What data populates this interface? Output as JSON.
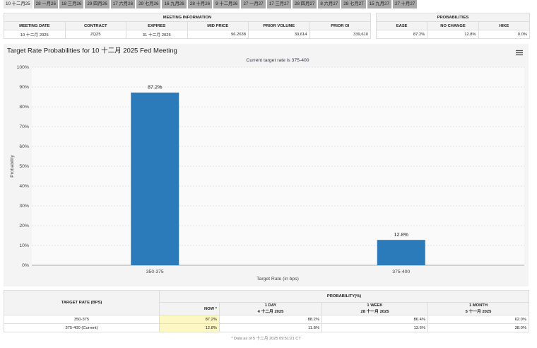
{
  "tabs": [
    "10 十二月25",
    "28 一月26",
    "18 三月26",
    "29 四月26",
    "17 六月26",
    "29 七月26",
    "16 九月26",
    "28 十月26",
    "9 十二月26",
    "27 一月27",
    "17 三月27",
    "28 四月27",
    "8 六月27",
    "28 七月27",
    "15 九月27",
    "27 十月27"
  ],
  "meeting_table": {
    "title": "MEETING INFORMATION",
    "headers": [
      "MEETING DATE",
      "CONTRACT",
      "EXPIRES",
      "MID PRICE",
      "PRIOR VOLUME",
      "PRIOR OI"
    ],
    "row": [
      "10 十二月 2025",
      "ZQZ5",
      "31 十二月 2025",
      "96.2638",
      "30,614",
      "339,610"
    ]
  },
  "probability_table": {
    "title": "PROBABILITIES",
    "headers": [
      "EASE",
      "NO CHANGE",
      "HIKE"
    ],
    "row": [
      "87.2%",
      "12.8%",
      "0.0%"
    ]
  },
  "chart_data": {
    "type": "bar",
    "title": "Target Rate Probabilities for 10 十二月 2025 Fed Meeting",
    "subtitle": "Current target rate is 375-400",
    "x_label": "Target Rate (in bps)",
    "y_label": "Probability",
    "categories": [
      "350-375",
      "375-400"
    ],
    "values": [
      87.2,
      12.8
    ],
    "value_labels": [
      "87.2%",
      "12.8%"
    ],
    "color": "#2b7bba",
    "ylim": [
      0,
      100
    ],
    "yticks": [
      {
        "value": 0,
        "label": "0%"
      },
      {
        "value": 10,
        "label": "10%"
      },
      {
        "value": 20,
        "label": "20%"
      },
      {
        "value": 30,
        "label": "30%"
      },
      {
        "value": 40,
        "label": "40%"
      },
      {
        "value": 50,
        "label": "50%"
      },
      {
        "value": 60,
        "label": "60%"
      },
      {
        "value": 70,
        "label": "70%"
      },
      {
        "value": 80,
        "label": "80%"
      },
      {
        "value": 90,
        "label": "90%"
      },
      {
        "value": 100,
        "label": "100%"
      }
    ],
    "grid": true
  },
  "history_table": {
    "rate_header": "TARGET RATE (BPS)",
    "probability_header": "PROBABILITY(%)",
    "columns": [
      {
        "label": "NOW *"
      },
      {
        "label": "1 DAY",
        "date": "4 十二月 2025"
      },
      {
        "label": "1 WEEK",
        "date": "28 十一月 2025"
      },
      {
        "label": "1 MONTH",
        "date": "5 十一月 2025"
      }
    ],
    "rows": [
      {
        "rate": "350-375",
        "values": [
          "87.2%",
          "88.2%",
          "86.4%",
          "62.0%"
        ]
      },
      {
        "rate": "375-400 (Current)",
        "values": [
          "12.8%",
          "11.8%",
          "13.6%",
          "38.0%"
        ]
      }
    ],
    "footnote": "* Data as of 5 十二月 2025 09:51:21 CT"
  }
}
